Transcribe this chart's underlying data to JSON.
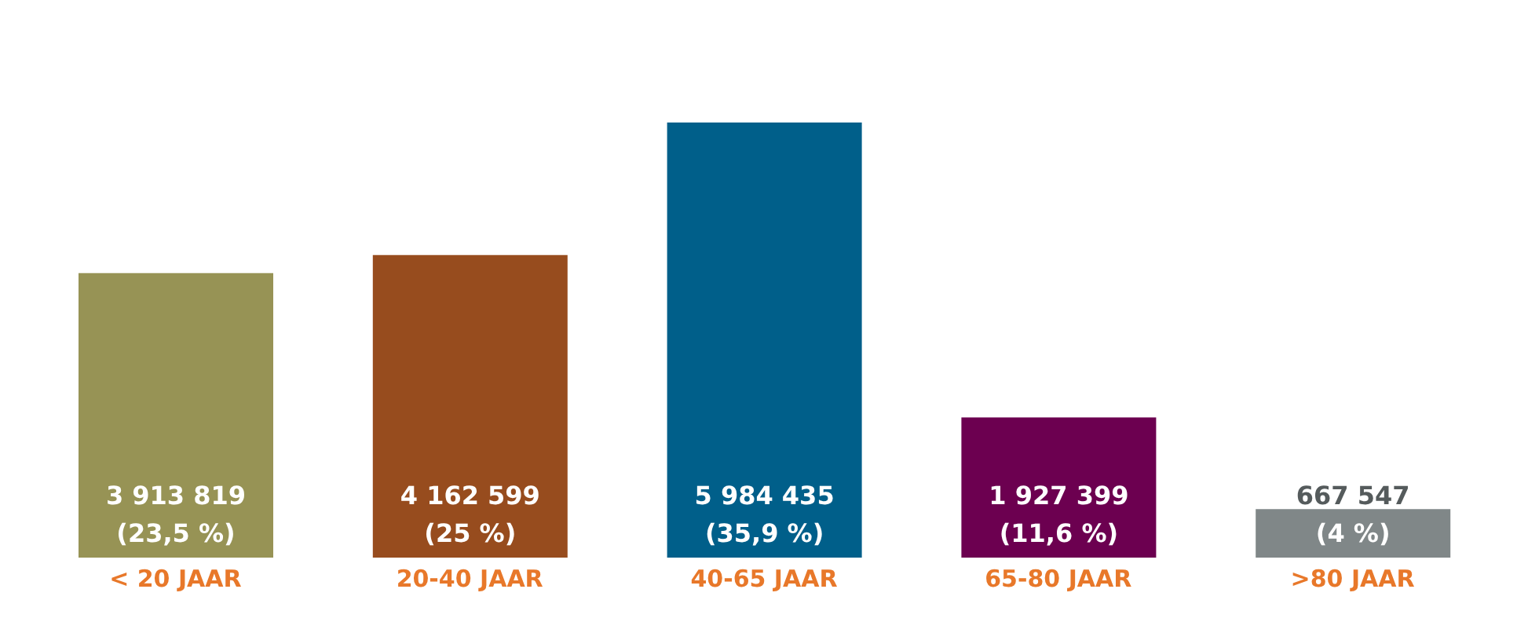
{
  "chart_data": {
    "type": "bar",
    "categories": [
      "< 20 JAAR",
      "20-40 JAAR",
      "40-65 JAAR",
      "65-80 JAAR",
      ">80 JAAR"
    ],
    "values": [
      3913819,
      4162599,
      5984435,
      1927399,
      667547
    ],
    "colors": [
      "#979355",
      "#974c1e",
      "#005f8a",
      "#6c0050",
      "#808788"
    ],
    "value_labels": [
      "3 913 819\n(23,5 %)",
      "4 162 599\n(25 %)",
      "5 984 435\n(35,9 %)",
      "1 927 399\n(11,6 %)",
      "667 547\n(4 %)"
    ]
  }
}
